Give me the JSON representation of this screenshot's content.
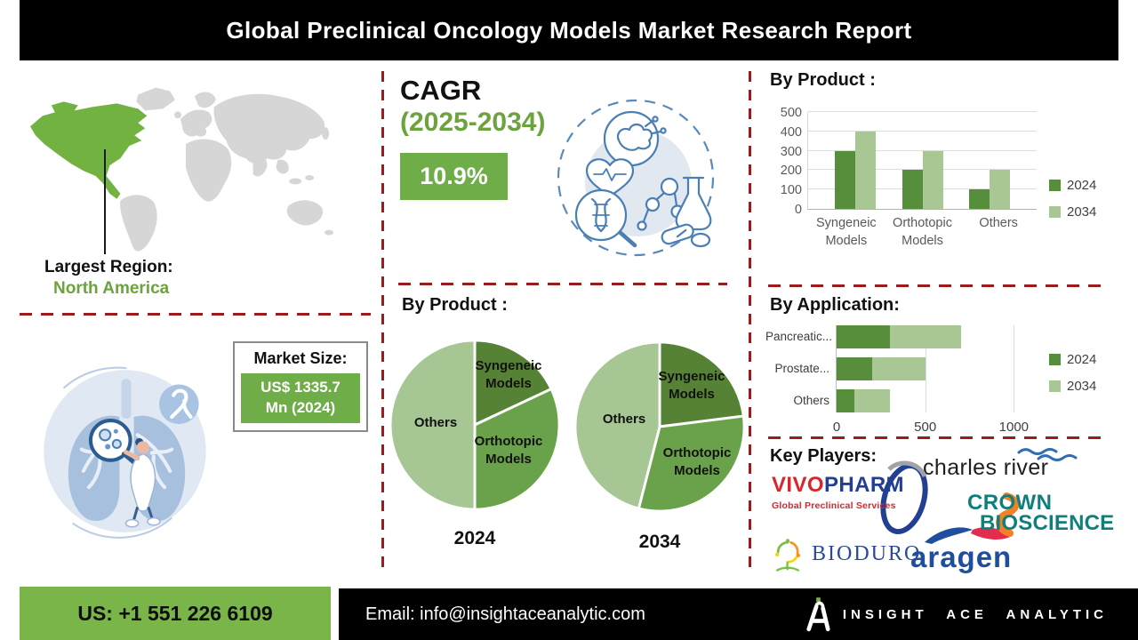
{
  "title": "Global Preclinical Oncology Models Market Research Report",
  "left_panel": {
    "largest_region_label": "Largest Region:",
    "largest_region_value": "North America",
    "market_size_label": "Market Size:",
    "market_size_line1": "US$ 1335.7",
    "market_size_line2": "Mn (2024)"
  },
  "cagr": {
    "label": "CAGR",
    "period": "(2025-2034)",
    "value": "10.9%"
  },
  "chart_data": [
    {
      "id": "by-product-bars",
      "type": "bar",
      "title": "By Product :",
      "categories": [
        "Syngeneic Models",
        "Orthotopic Models",
        "Others"
      ],
      "series": [
        {
          "name": "2024",
          "color": "#568e3b",
          "values": [
            300,
            200,
            100
          ]
        },
        {
          "name": "2034",
          "color": "#a9c794",
          "values": [
            400,
            300,
            200
          ]
        }
      ],
      "ylim": [
        0,
        500
      ],
      "y_ticks": [
        0,
        100,
        200,
        300,
        400,
        500
      ],
      "grid": true,
      "legend_position": "right"
    },
    {
      "id": "by-product-pie-2024",
      "type": "pie",
      "title": "By Product :",
      "caption": "2024",
      "segments": [
        {
          "label": "Syngeneic Models",
          "value": 18,
          "color": "#568235"
        },
        {
          "label": "Orthotopic Models",
          "value": 32,
          "color": "#69a24a"
        },
        {
          "label": "Others",
          "value": 50,
          "color": "#a6c693"
        }
      ]
    },
    {
      "id": "by-product-pie-2034",
      "type": "pie",
      "caption": "2034",
      "segments": [
        {
          "label": "Syngeneic Models",
          "value": 23,
          "color": "#568235"
        },
        {
          "label": "Orthotopic Models",
          "value": 31,
          "color": "#69a24a"
        },
        {
          "label": "Others",
          "value": 46,
          "color": "#a6c693"
        }
      ]
    },
    {
      "id": "by-application-bars",
      "type": "bar",
      "orientation": "horizontal",
      "stacked": true,
      "title": "By Application:",
      "categories": [
        "Pancreatic...",
        "Prostate...",
        "Others"
      ],
      "series": [
        {
          "name": "2024",
          "color": "#568e3b",
          "values": [
            300,
            200,
            100
          ]
        },
        {
          "name": "2034",
          "color": "#a9c794",
          "values": [
            400,
            300,
            200
          ]
        }
      ],
      "xlim": [
        0,
        1500
      ],
      "x_ticks": [
        0,
        500,
        1000
      ],
      "grid": true,
      "legend_position": "right"
    }
  ],
  "key_players": {
    "label": "Key Players:",
    "vivopharm": {
      "word1": "VIVO",
      "word2": "PHARM",
      "tagline": "Global Preclinical Services"
    },
    "charles_river": {
      "text": "charles river"
    },
    "crown": {
      "line1": "CROWN",
      "line2": "BIOSCIENCE"
    },
    "bioduro": {
      "text": "BIODURO"
    },
    "aragen": {
      "text": "aragen"
    }
  },
  "footer": {
    "phone": "US: +1 551 226 6109",
    "email": "Email: info@insightaceanalytic.com",
    "brand": "INSIGHT ACE ANALYTIC"
  },
  "colors": {
    "accent_green_dark": "#568e3b",
    "accent_green_light": "#a9c794",
    "headline_green": "#6ca33e",
    "badge_green": "#6fad49",
    "footer_green": "#7ab54a",
    "divider_red": "#9b1b1e",
    "map_region_green": "#72b241",
    "map_gray": "#d6d6d6"
  }
}
